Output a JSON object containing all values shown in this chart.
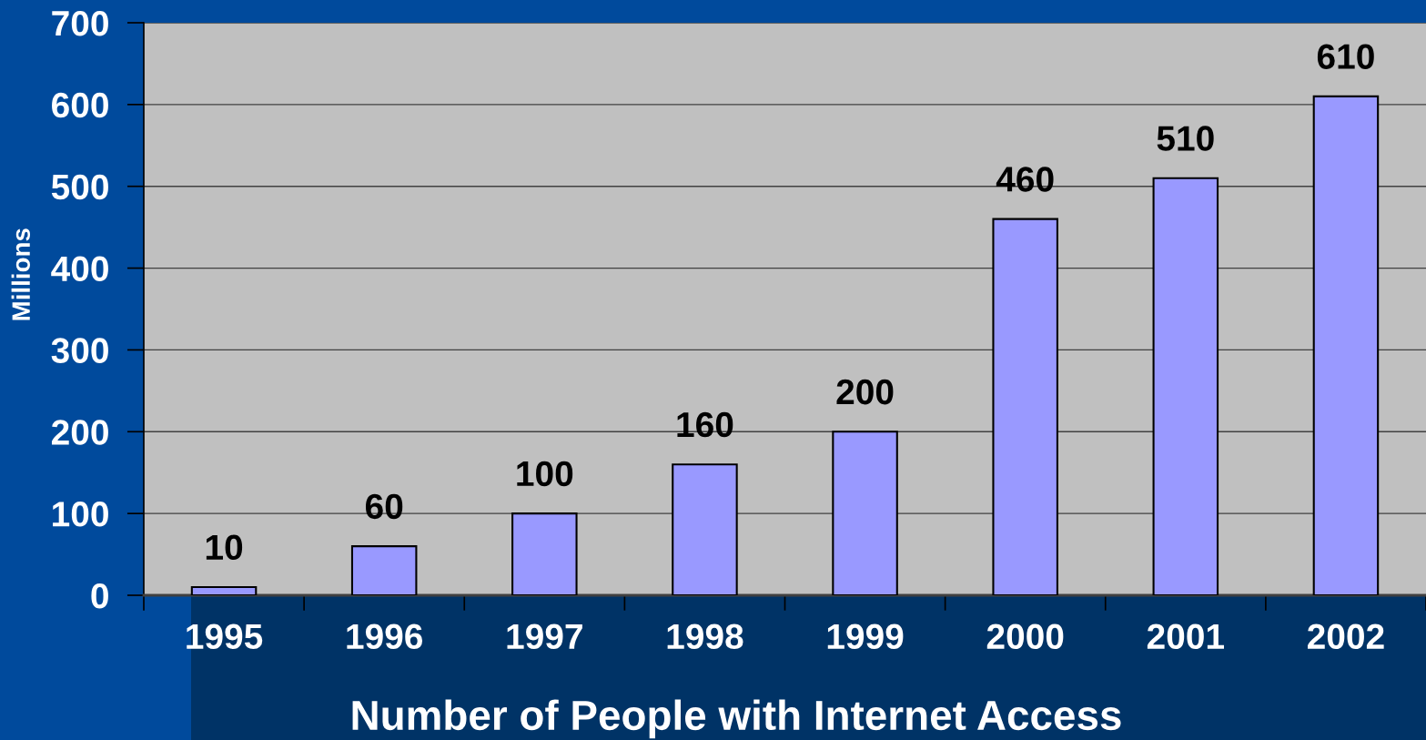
{
  "chart_data": {
    "type": "bar",
    "xlabel": "Number of People with Internet Access",
    "ylabel": "Millions",
    "categories": [
      "1995",
      "1996",
      "1997",
      "1998",
      "1999",
      "2000",
      "2001",
      "2002"
    ],
    "values": [
      10,
      60,
      100,
      160,
      200,
      460,
      510,
      610
    ],
    "color": "#9999ff",
    "ylim": [
      0,
      700
    ],
    "yticks": [
      0,
      100,
      200,
      300,
      400,
      500,
      600,
      700
    ],
    "grid": "y",
    "data_labels": true
  }
}
